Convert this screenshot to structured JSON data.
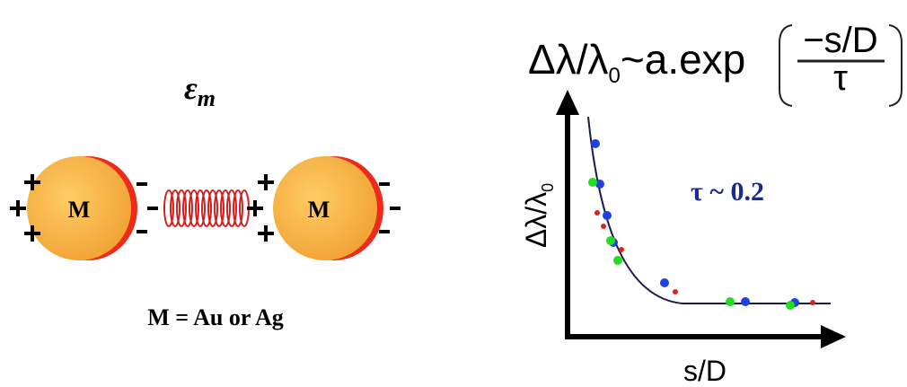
{
  "medium_label": {
    "symbol": "ε",
    "subscript": "m"
  },
  "particles": [
    {
      "label": "M"
    },
    {
      "label": "M"
    }
  ],
  "caption": "M = Au or Ag",
  "formula": {
    "lhs": "Δλ/λ",
    "lhs_subscript": "0",
    "rhs": "~a.exp",
    "numerator": "−s/D",
    "denominator": "τ"
  },
  "plot": {
    "y_label": "Δλ/λ",
    "y_label_subscript": "0",
    "x_label": "s/D",
    "annotation": "τ ~ 0.2"
  }
}
